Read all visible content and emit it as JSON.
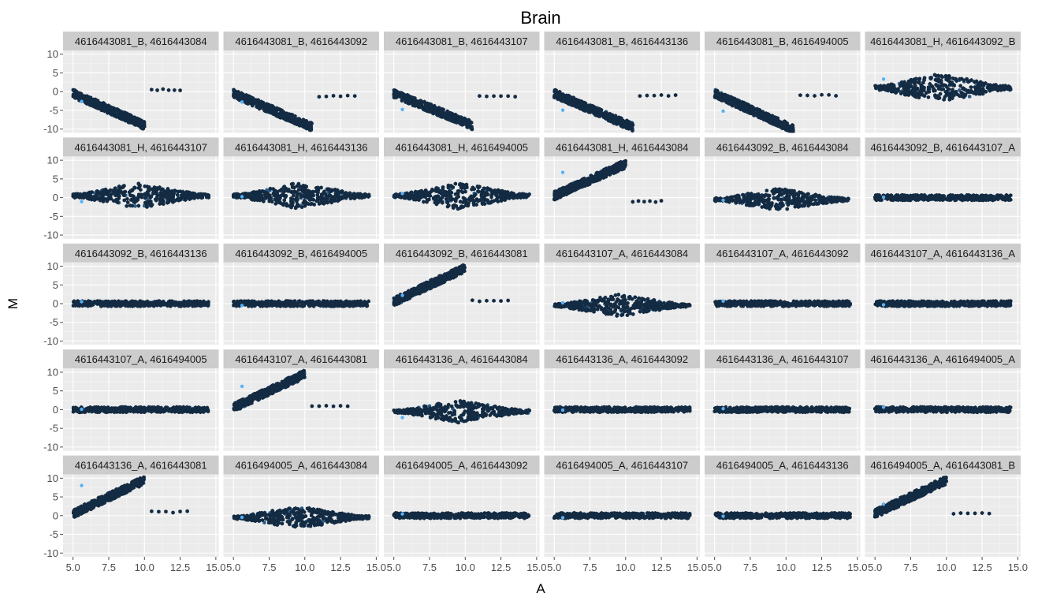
{
  "chart_data": {
    "type": "scatter",
    "style": "hexbin density facet grid",
    "title": "Brain",
    "xlabel": "A",
    "ylabel": "M",
    "xlim": [
      4.3,
      15.2
    ],
    "ylim": [
      -11,
      11
    ],
    "x_ticks": [
      5.0,
      7.5,
      10.0,
      12.5,
      15.0
    ],
    "x_tick_labels": [
      "5.0",
      "7.5",
      "10.0",
      "12.5",
      "15.0"
    ],
    "y_ticks": [
      10,
      5,
      0,
      -5,
      -10
    ],
    "y_tick_labels": [
      "10",
      "5",
      "0",
      "-5",
      "-10"
    ],
    "grid": true,
    "grid_rows": 5,
    "grid_cols": 6,
    "colors": {
      "panel": "#ebebeb",
      "strip": "#cccccc",
      "density_high": "#132b43",
      "density_low": "#56b1f7"
    },
    "panels": [
      {
        "label": "4616443081_B, 4616443084",
        "pattern": "neg",
        "x": [
          5,
          10
        ],
        "y": [
          -0.5,
          -9
        ],
        "extra_x": [
          10.5,
          12.5
        ],
        "extra_y": 0.5
      },
      {
        "label": "4616443081_B, 4616443092",
        "pattern": "neg",
        "x": [
          5,
          10.5
        ],
        "y": [
          -0.5,
          -9.5
        ],
        "extra_x": [
          11,
          13.5
        ],
        "extra_y": -1.2
      },
      {
        "label": "4616443081_B, 4616443107",
        "pattern": "neg",
        "x": [
          5,
          10.5
        ],
        "y": [
          -0.5,
          -9
        ],
        "extra_x": [
          11,
          13.5
        ],
        "extra_y": -1.2
      },
      {
        "label": "4616443081_B, 4616443136",
        "pattern": "neg",
        "x": [
          5,
          10.5
        ],
        "y": [
          -0.5,
          -9.5
        ],
        "extra_x": [
          11,
          13.5
        ],
        "extra_y": -1
      },
      {
        "label": "4616443081_B, 4616494005",
        "pattern": "neg",
        "x": [
          5,
          10.5
        ],
        "y": [
          -0.5,
          -10
        ],
        "extra_x": [
          11,
          13.5
        ],
        "extra_y": -1
      },
      {
        "label": "4616443081_H, 4616443092_B",
        "pattern": "diamond",
        "x": [
          5,
          14.5
        ],
        "center": 1,
        "spread": 4
      },
      {
        "label": "4616443081_H, 4616443107",
        "pattern": "diamond",
        "x": [
          5,
          14.5
        ],
        "center": 0.5,
        "spread": 3.5
      },
      {
        "label": "4616443081_H, 4616443136",
        "pattern": "diamond",
        "x": [
          5,
          14.5
        ],
        "center": 0.5,
        "spread": 3.5
      },
      {
        "label": "4616443081_H, 4616494005",
        "pattern": "diamond",
        "x": [
          5,
          14.5
        ],
        "center": 0.5,
        "spread": 3.5
      },
      {
        "label": "4616443081_H, 4616443084",
        "pattern": "pos",
        "x": [
          5,
          10
        ],
        "y": [
          0.5,
          9
        ],
        "extra_x": [
          10.5,
          12.5
        ],
        "extra_y": -1
      },
      {
        "label": "4616443092_B, 4616443084",
        "pattern": "diamond",
        "x": [
          5,
          14.5
        ],
        "center": -0.5,
        "spread": 3
      },
      {
        "label": "4616443092_B, 4616443107_A",
        "pattern": "flat",
        "x": [
          5,
          14.5
        ],
        "center": 0
      },
      {
        "label": "4616443092_B, 4616443136",
        "pattern": "flat",
        "x": [
          5,
          14.5
        ],
        "center": 0
      },
      {
        "label": "4616443092_B, 4616494005",
        "pattern": "flat",
        "x": [
          5,
          14.5
        ],
        "center": 0
      },
      {
        "label": "4616443092_B, 4616443081",
        "pattern": "pos",
        "x": [
          5,
          10
        ],
        "y": [
          0.5,
          9.5
        ],
        "extra_x": [
          10.5,
          13
        ],
        "extra_y": 0.8
      },
      {
        "label": "4616443107_A, 4616443084",
        "pattern": "diamond",
        "x": [
          5,
          14.5
        ],
        "center": -0.5,
        "spread": 3
      },
      {
        "label": "4616443107_A, 4616443092",
        "pattern": "flat",
        "x": [
          5,
          14.5
        ],
        "center": 0
      },
      {
        "label": "4616443107_A, 4616443136_A",
        "pattern": "flat",
        "x": [
          5,
          14.5
        ],
        "center": 0
      },
      {
        "label": "4616443107_A, 4616494005",
        "pattern": "flat",
        "x": [
          5,
          14.5
        ],
        "center": 0
      },
      {
        "label": "4616443107_A, 4616443081",
        "pattern": "pos",
        "x": [
          5,
          10
        ],
        "y": [
          0.5,
          9.5
        ],
        "extra_x": [
          10.5,
          13
        ],
        "extra_y": 1
      },
      {
        "label": "4616443136_A, 4616443084",
        "pattern": "diamond",
        "x": [
          5,
          14.5
        ],
        "center": -0.5,
        "spread": 3
      },
      {
        "label": "4616443136_A, 4616443092",
        "pattern": "flat",
        "x": [
          5,
          14.5
        ],
        "center": 0
      },
      {
        "label": "4616443136_A, 4616443107",
        "pattern": "flat",
        "x": [
          5,
          14.5
        ],
        "center": 0
      },
      {
        "label": "4616443136_A, 4616494005_A",
        "pattern": "flat",
        "x": [
          5,
          14.5
        ],
        "center": 0
      },
      {
        "label": "4616443136_A, 4616443081",
        "pattern": "pos",
        "x": [
          5,
          10
        ],
        "y": [
          0.5,
          9.5
        ],
        "extra_x": [
          10.5,
          13
        ],
        "extra_y": 1
      },
      {
        "label": "4616494005_A, 4616443084",
        "pattern": "diamond",
        "x": [
          5,
          14.5
        ],
        "center": -0.5,
        "spread": 3
      },
      {
        "label": "4616494005_A, 4616443092",
        "pattern": "flat",
        "x": [
          5,
          14.5
        ],
        "center": 0
      },
      {
        "label": "4616494005_A, 4616443107",
        "pattern": "flat",
        "x": [
          5,
          14.5
        ],
        "center": 0
      },
      {
        "label": "4616494005_A, 4616443136",
        "pattern": "flat",
        "x": [
          5,
          14.5
        ],
        "center": 0
      },
      {
        "label": "4616494005_A, 4616443081_B",
        "pattern": "pos",
        "x": [
          5,
          10
        ],
        "y": [
          0.5,
          9.5
        ],
        "extra_x": [
          10.5,
          13
        ],
        "extra_y": 0.5
      }
    ]
  }
}
